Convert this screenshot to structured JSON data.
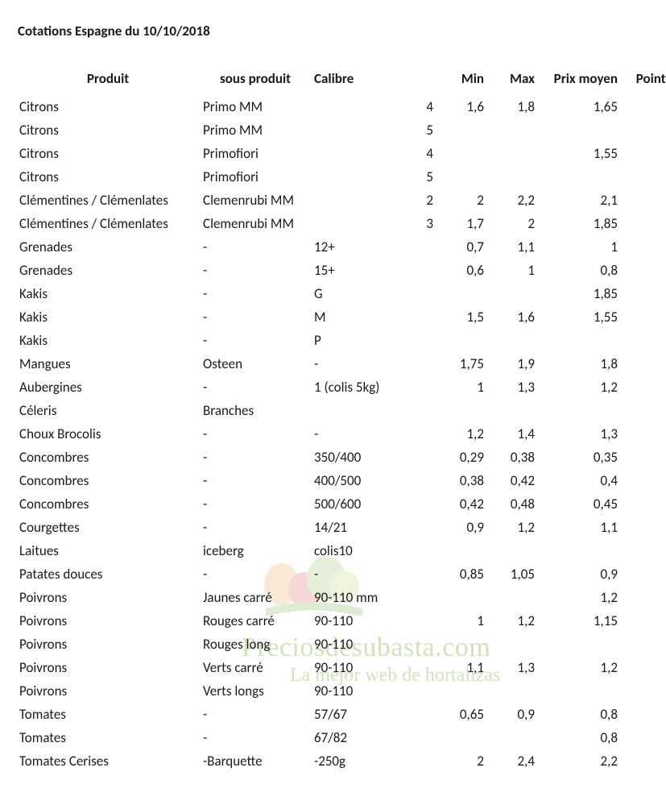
{
  "title": "Cotations Espagne du 10/10/2018",
  "columns": {
    "produit": "Produit",
    "sous_produit": "sous produit",
    "calibre": "Calibre",
    "min": "Min",
    "max": "Max",
    "prix_moyen": "Prix moyen",
    "pointe": "Pointe"
  },
  "rows": [
    {
      "produit": "Citrons",
      "sous": "Primo MM",
      "calibre": "",
      "calnum": "4",
      "min": "1,6",
      "max": "1,8",
      "prix": "1,65",
      "pointe": ""
    },
    {
      "produit": "Citrons",
      "sous": "Primo MM",
      "calibre": "",
      "calnum": "5",
      "min": "",
      "max": "",
      "prix": "",
      "pointe": ""
    },
    {
      "produit": "Citrons",
      "sous": "Primofiori",
      "calibre": "",
      "calnum": "4",
      "min": "",
      "max": "",
      "prix": "1,55",
      "pointe": ""
    },
    {
      "produit": "Citrons",
      "sous": "Primofiori",
      "calibre": "",
      "calnum": "5",
      "min": "",
      "max": "",
      "prix": "",
      "pointe": ""
    },
    {
      "produit": "Clémentines / Clémenlates",
      "sous": "Clemenrubi MM",
      "calibre": "",
      "calnum": "2",
      "min": "2",
      "max": "2,2",
      "prix": "2,1",
      "pointe": ""
    },
    {
      "produit": "Clémentines / Clémenlates",
      "sous": "Clemenrubi MM",
      "calibre": "",
      "calnum": "3",
      "min": "1,7",
      "max": "2",
      "prix": "1,85",
      "pointe": ""
    },
    {
      "produit": "Grenades",
      "sous": "-",
      "calibre": "12+",
      "calnum": "",
      "min": "0,7",
      "max": "1,1",
      "prix": "1",
      "pointe": ""
    },
    {
      "produit": "Grenades",
      "sous": "-",
      "calibre": "15+",
      "calnum": "",
      "min": "0,6",
      "max": "1",
      "prix": "0,8",
      "pointe": ""
    },
    {
      "produit": "Kakis",
      "sous": "-",
      "calibre": "G",
      "calnum": "",
      "min": "",
      "max": "",
      "prix": "1,85",
      "pointe": ""
    },
    {
      "produit": "Kakis",
      "sous": "-",
      "calibre": "M",
      "calnum": "",
      "min": "1,5",
      "max": "1,6",
      "prix": "1,55",
      "pointe": ""
    },
    {
      "produit": "Kakis",
      "sous": "-",
      "calibre": "P",
      "calnum": "",
      "min": "",
      "max": "",
      "prix": "",
      "pointe": ""
    },
    {
      "produit": "Mangues",
      "sous": "Osteen",
      "calibre": "-",
      "calnum": "",
      "min": "1,75",
      "max": "1,9",
      "prix": "1,8",
      "pointe": ""
    },
    {
      "produit": "Aubergines",
      "sous": "-",
      "calibre": "1 (colis 5kg)",
      "calnum": "",
      "min": "1",
      "max": "1,3",
      "prix": "1,2",
      "pointe": ""
    },
    {
      "produit": "Céleris",
      "sous": "Branches",
      "calibre": "",
      "calnum": "",
      "min": "",
      "max": "",
      "prix": "",
      "pointe": ""
    },
    {
      "produit": "Choux Brocolis",
      "sous": "-",
      "calibre": "-",
      "calnum": "",
      "min": "1,2",
      "max": "1,4",
      "prix": "1,3",
      "pointe": ""
    },
    {
      "produit": "Concombres",
      "sous": "-",
      "calibre": "350/400",
      "calnum": "",
      "min": "0,29",
      "max": "0,38",
      "prix": "0,35",
      "pointe": ""
    },
    {
      "produit": "Concombres",
      "sous": "-",
      "calibre": "400/500",
      "calnum": "",
      "min": "0,38",
      "max": "0,42",
      "prix": "0,4",
      "pointe": ""
    },
    {
      "produit": "Concombres",
      "sous": "-",
      "calibre": "500/600",
      "calnum": "",
      "min": "0,42",
      "max": "0,48",
      "prix": "0,45",
      "pointe": ""
    },
    {
      "produit": "Courgettes",
      "sous": "-",
      "calibre": "14/21",
      "calnum": "",
      "min": "0,9",
      "max": "1,2",
      "prix": "1,1",
      "pointe": ""
    },
    {
      "produit": "Laitues",
      "sous": "iceberg",
      "calibre": "colis10",
      "calnum": "",
      "min": "",
      "max": "",
      "prix": "",
      "pointe": ""
    },
    {
      "produit": "Patates douces",
      "sous": "-",
      "calibre": "-",
      "calnum": "",
      "min": "0,85",
      "max": "1,05",
      "prix": "0,9",
      "pointe": ""
    },
    {
      "produit": "Poivrons",
      "sous": "Jaunes carré",
      "calibre": "90-110 mm",
      "calnum": "",
      "min": "",
      "max": "",
      "prix": "1,2",
      "pointe": ""
    },
    {
      "produit": "Poivrons",
      "sous": "Rouges carré",
      "calibre": "90-110",
      "calnum": "",
      "min": "1",
      "max": "1,2",
      "prix": "1,15",
      "pointe": ""
    },
    {
      "produit": "Poivrons",
      "sous": "Rouges long",
      "calibre": "90-110",
      "calnum": "",
      "min": "",
      "max": "",
      "prix": "",
      "pointe": ""
    },
    {
      "produit": "Poivrons",
      "sous": "Verts carré",
      "calibre": "90-110",
      "calnum": "",
      "min": "1,1",
      "max": "1,3",
      "prix": "1,2",
      "pointe": ""
    },
    {
      "produit": "Poivrons",
      "sous": "Verts longs",
      "calibre": "90-110",
      "calnum": "",
      "min": "",
      "max": "",
      "prix": "",
      "pointe": ""
    },
    {
      "produit": "Tomates",
      "sous": "-",
      "calibre": "57/67",
      "calnum": "",
      "min": "0,65",
      "max": "0,9",
      "prix": "0,8",
      "pointe": ""
    },
    {
      "produit": "Tomates",
      "sous": "-",
      "calibre": "67/82",
      "calnum": "",
      "min": "",
      "max": "",
      "prix": "0,8",
      "pointe": ""
    },
    {
      "produit": "Tomates Cerises",
      "sous": "-Barquette",
      "calibre": "-250g",
      "calnum": "",
      "min": "2",
      "max": "2,4",
      "prix": "2,2",
      "pointe": ""
    }
  ],
  "watermark": {
    "domain_text": "Preciosdesubasta.com",
    "slogan_text": "La mejor web de hortalizas",
    "text_color": "#9bc06a",
    "logo_colors": [
      "#e8a04a",
      "#d94f4f",
      "#8fbf5f",
      "#6fae4a",
      "#b5d26a"
    ]
  },
  "style": {
    "background": "#ffffff",
    "text_color": "#1a1a1a",
    "font_size_body": 17,
    "font_size_title": 17
  }
}
